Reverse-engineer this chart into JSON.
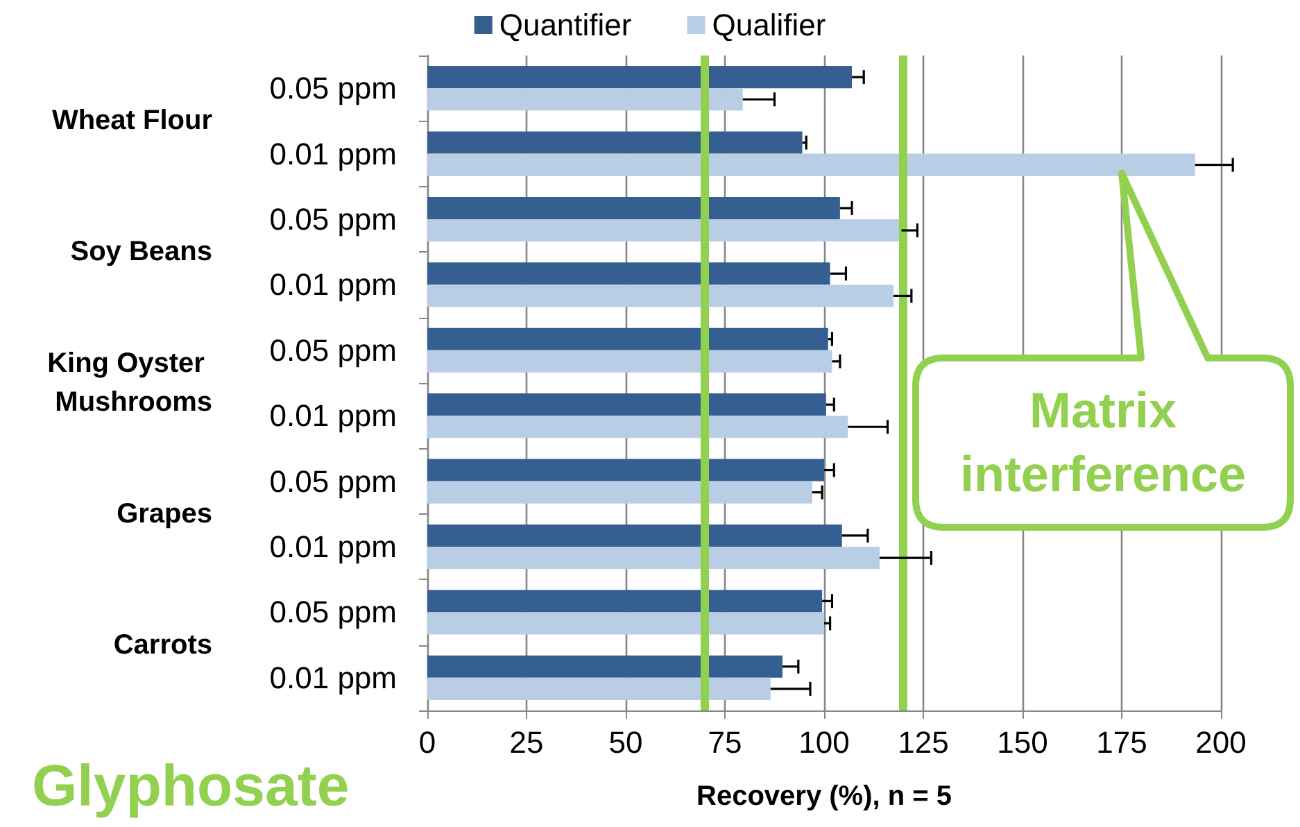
{
  "chart_data": {
    "type": "bar",
    "orientation": "horizontal",
    "title": "Glyphosate",
    "xlabel": "Recovery (%), n = 5",
    "categories": [
      "0.05 ppm",
      "0.01 ppm",
      "0.05 ppm",
      "0.01 ppm",
      "0.05 ppm",
      "0.01 ppm",
      "0.05 ppm",
      "0.01 ppm",
      "0.05 ppm",
      "0.01 ppm"
    ],
    "series": [
      {
        "name": "Quantifier",
        "color": "#355f91",
        "values": [
          107,
          94.5,
          104,
          101.5,
          101,
          100.5,
          100,
          104.5,
          99.5,
          89.5
        ],
        "errors": [
          [
            107,
            110
          ],
          [
            94.5,
            95.5
          ],
          [
            104,
            107
          ],
          [
            101.5,
            105.5
          ],
          [
            101,
            102
          ],
          [
            100.5,
            102.5
          ],
          [
            100,
            102.5
          ],
          [
            104.5,
            111
          ],
          [
            99.5,
            102
          ],
          [
            89.5,
            93.5
          ]
        ]
      },
      {
        "name": "Qualifier",
        "color": "#b9cde5",
        "values": [
          79.5,
          193.5,
          119.5,
          117.5,
          102,
          106,
          97,
          114,
          100,
          86.5
        ],
        "errors": [
          [
            79.5,
            87.5
          ],
          [
            193.5,
            203
          ],
          [
            119.5,
            123.5
          ],
          [
            117.5,
            122
          ],
          [
            102,
            104
          ],
          [
            106,
            116
          ],
          [
            97,
            99.5
          ],
          [
            114,
            127
          ],
          [
            100,
            101.5
          ],
          [
            86.5,
            96.5
          ]
        ]
      }
    ],
    "annotations": [
      "Wheat Flour",
      "Soy Beans",
      "King Oyster Mushrooms",
      "Grapes",
      "Carrots",
      "Matrix interference"
    ],
    "ref_lines": [
      {
        "axis": "x",
        "value": 70,
        "color": "#92d050"
      },
      {
        "axis": "x",
        "value": 120,
        "color": "#92d050"
      }
    ],
    "xlim": [
      0,
      200
    ],
    "xticks": [
      0,
      25,
      50,
      75,
      100,
      125,
      150,
      175,
      200
    ],
    "grid": "x",
    "legend": "top"
  }
}
